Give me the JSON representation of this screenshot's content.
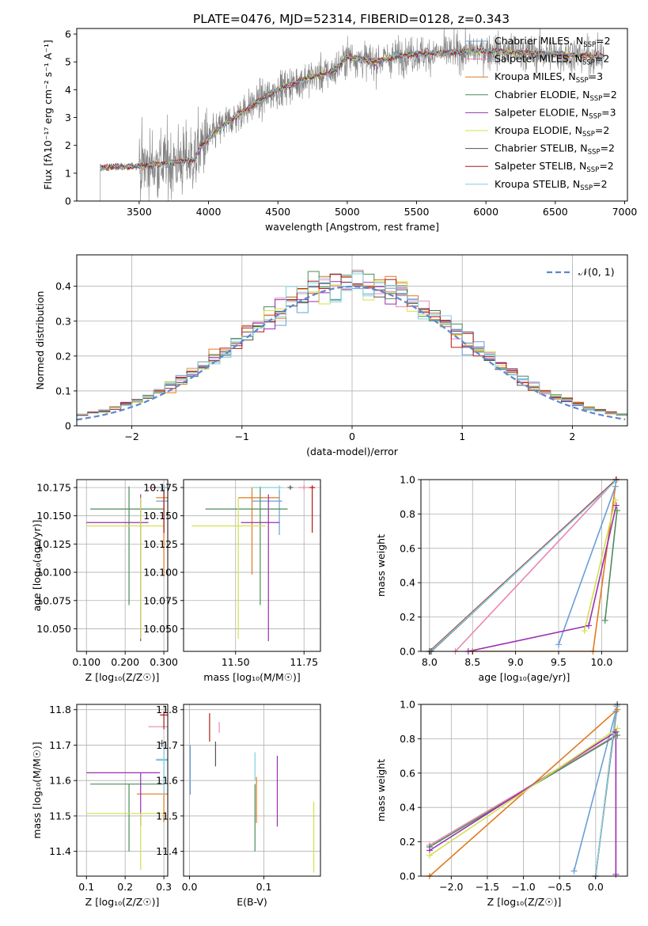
{
  "figure": {
    "title": "PLATE=0476, MJD=52314, FIBERID=0128, z=0.343"
  },
  "colors": {
    "series": [
      "#6a9fd6",
      "#e987b0",
      "#e07a20",
      "#4c8c5a",
      "#9a2eb0",
      "#d2e04c",
      "#555555",
      "#b01818",
      "#7fd0e0"
    ],
    "spectrum_data": "#808080",
    "normal": "#5b87d0",
    "grid": "#b0b0b0"
  },
  "chart_data": [
    {
      "id": "spectrum",
      "type": "line",
      "xlabel": "wavelength [Angstrom, rest frame]",
      "ylabel": "Flux [fλ10⁻¹⁷ erg cm⁻² s⁻¹ A⁻¹]",
      "xlim": [
        3050,
        7020
      ],
      "ylim": [
        0,
        6.2
      ],
      "xticks": [
        3500,
        4000,
        4500,
        5000,
        5500,
        6000,
        6500,
        7000
      ],
      "yticks": [
        0,
        1,
        2,
        3,
        4,
        5,
        6
      ],
      "grid": false,
      "legend_position": "upper-right",
      "x_range": [
        3220,
        6850
      ],
      "continuum": [
        [
          3220,
          1.2
        ],
        [
          3500,
          1.25
        ],
        [
          3700,
          1.35
        ],
        [
          3900,
          1.5
        ],
        [
          3950,
          2.0
        ],
        [
          4100,
          2.7
        ],
        [
          4300,
          3.4
        ],
        [
          4500,
          4.0
        ],
        [
          4700,
          4.4
        ],
        [
          4900,
          4.65
        ],
        [
          5000,
          5.2
        ],
        [
          5200,
          5.0
        ],
        [
          5400,
          5.25
        ],
        [
          5600,
          5.3
        ],
        [
          5800,
          5.35
        ],
        [
          6000,
          5.4
        ],
        [
          6200,
          5.35
        ],
        [
          6400,
          5.3
        ],
        [
          6600,
          5.25
        ],
        [
          6850,
          5.2
        ]
      ],
      "series": [
        {
          "name": "Chabrier MILES, N",
          "sub": "SSP",
          "suffix": "=2"
        },
        {
          "name": "Salpeter MILES, N",
          "sub": "SSP",
          "suffix": "=2"
        },
        {
          "name": "Kroupa MILES, N",
          "sub": "SSP",
          "suffix": "=3"
        },
        {
          "name": "Chabrier ELODIE, N",
          "sub": "SSP",
          "suffix": "=2"
        },
        {
          "name": "Salpeter ELODIE, N",
          "sub": "SSP",
          "suffix": "=3"
        },
        {
          "name": "Kroupa ELODIE, N",
          "sub": "SSP",
          "suffix": "=2"
        },
        {
          "name": "Chabrier STELIB, N",
          "sub": "SSP",
          "suffix": "=2"
        },
        {
          "name": "Salpeter STELIB, N",
          "sub": "SSP",
          "suffix": "=2"
        },
        {
          "name": "Kroupa STELIB, N",
          "sub": "SSP",
          "suffix": "=2"
        }
      ]
    },
    {
      "id": "residuals",
      "type": "histogram",
      "xlabel": "(data-model)/error",
      "ylabel": "Normed distribution",
      "xlim": [
        -2.5,
        2.5
      ],
      "ylim": [
        0,
        0.49
      ],
      "xticks": [
        -2,
        -1,
        0,
        1,
        2
      ],
      "yticks": [
        0.0,
        0.1,
        0.2,
        0.3,
        0.4
      ],
      "grid": true,
      "legend_position": "upper-right",
      "legend": "𝒩(0, 1)",
      "bin_width": 0.1,
      "series_count": 9
    },
    {
      "id": "age-vs-Z",
      "type": "errorbar",
      "xlabel": "Z [log₁₀(Z/Z☉)]",
      "ylabel": "age  [log₁₀(age/yr)]",
      "xlim": [
        0.075,
        0.31
      ],
      "ylim": [
        10.03,
        10.182
      ],
      "xticks": [
        0.1,
        0.2,
        0.3
      ],
      "yticks": [
        10.05,
        10.075,
        10.1,
        10.125,
        10.15,
        10.175
      ],
      "tick_decimals": 3,
      "grid": true,
      "points": [
        {
          "x": 0.3,
          "xerr": [
            0.02,
            0.01
          ],
          "y": 10.163,
          "yerr": [
            0.03,
            0.01
          ]
        },
        {
          "x": 0.3,
          "xerr": [
            0.04,
            0.01
          ],
          "y": 10.175,
          "yerr": [
            0.002,
            0.002
          ]
        },
        {
          "x": 0.3,
          "xerr": [
            0.02,
            0.01
          ],
          "y": 10.166,
          "yerr": [
            0.068,
            0.009
          ]
        },
        {
          "x": 0.21,
          "xerr": [
            0.1,
            0.09
          ],
          "y": 10.156,
          "yerr": [
            0.085,
            0.02
          ]
        },
        {
          "x": 0.24,
          "xerr": [
            0.14,
            0.02
          ],
          "y": 10.144,
          "yerr": [
            0.105,
            0.025
          ]
        },
        {
          "x": 0.24,
          "xerr": [
            0.14,
            0.06
          ],
          "y": 10.141,
          "yerr": [
            0.1,
            0.025
          ]
        },
        {
          "x": 0.295,
          "xerr": [
            0.005,
            0.005
          ],
          "y": 10.175,
          "yerr": [
            0.002,
            0.002
          ]
        },
        {
          "x": 0.3,
          "xerr": [
            0.03,
            0.01
          ],
          "y": 10.175,
          "yerr": [
            0.04,
            0.002
          ]
        },
        {
          "x": 0.3,
          "xerr": [
            0.02,
            0.01
          ],
          "y": 10.175,
          "yerr": [
            0.002,
            0.002
          ]
        }
      ]
    },
    {
      "id": "age-vs-mass",
      "type": "errorbar",
      "xlabel": "mass [log₁₀(M/M☉)]",
      "ylabel": "",
      "xlim": [
        11.31,
        11.81
      ],
      "ylim": [
        10.03,
        10.182
      ],
      "xticks": [
        11.5,
        11.75
      ],
      "xtick_labels": [
        "11.50",
        "11.75"
      ],
      "yticks": [
        10.05,
        10.075,
        10.1,
        10.125,
        10.15,
        10.175
      ],
      "tick_decimals": 3,
      "grid": true,
      "points": [
        {
          "x": 11.66,
          "xerr": [
            0.1,
            0.01
          ],
          "y": 10.163,
          "yerr": [
            0.03,
            0.01
          ]
        },
        {
          "x": 11.75,
          "xerr": [
            0.02,
            0.04
          ],
          "y": 10.175,
          "yerr": [
            0.002,
            0.002
          ]
        },
        {
          "x": 11.56,
          "xerr": [
            0.05,
            0.1
          ],
          "y": 10.166,
          "yerr": [
            0.068,
            0.009
          ]
        },
        {
          "x": 11.59,
          "xerr": [
            0.2,
            0.1
          ],
          "y": 10.156,
          "yerr": [
            0.085,
            0.02
          ]
        },
        {
          "x": 11.62,
          "xerr": [
            0.1,
            0.04
          ],
          "y": 10.144,
          "yerr": [
            0.105,
            0.025
          ]
        },
        {
          "x": 11.51,
          "xerr": [
            0.17,
            0.1
          ],
          "y": 10.141,
          "yerr": [
            0.1,
            0.025
          ]
        },
        {
          "x": 11.7,
          "xerr": [
            0.01,
            0.01
          ],
          "y": 10.175,
          "yerr": [
            0.002,
            0.002
          ]
        },
        {
          "x": 11.78,
          "xerr": [
            0.01,
            0.01
          ],
          "y": 10.175,
          "yerr": [
            0.04,
            0.002
          ]
        },
        {
          "x": 11.66,
          "xerr": [
            0.1,
            0.01
          ],
          "y": 10.175,
          "yerr": [
            0.002,
            0.002
          ]
        }
      ]
    },
    {
      "id": "weight-vs-age",
      "type": "line",
      "xlabel": "age  [log₁₀(age/yr)]",
      "ylabel": "mass weight",
      "xlim": [
        7.9,
        10.3
      ],
      "ylim": [
        0,
        1
      ],
      "xticks": [
        8.0,
        8.5,
        9.0,
        9.5,
        10.0
      ],
      "yticks": [
        0.0,
        0.2,
        0.4,
        0.6,
        0.8,
        1.0
      ],
      "tick_decimals": 1,
      "grid": true,
      "series": [
        {
          "points": [
            [
              9.5,
              0.04
            ],
            [
              10.16,
              0.96
            ]
          ]
        },
        {
          "points": [
            [
              8.3,
              0.0
            ],
            [
              10.17,
              1.0
            ]
          ]
        },
        {
          "points": [
            [
              8.5,
              0.0
            ],
            [
              9.9,
              0.0
            ],
            [
              10.17,
              1.0
            ]
          ]
        },
        {
          "points": [
            [
              10.04,
              0.18
            ],
            [
              10.18,
              0.82
            ]
          ]
        },
        {
          "points": [
            [
              8.45,
              0.0
            ],
            [
              9.85,
              0.15
            ],
            [
              10.17,
              0.85
            ]
          ]
        },
        {
          "points": [
            [
              9.8,
              0.12
            ],
            [
              10.16,
              0.88
            ]
          ]
        },
        {
          "points": [
            [
              8.02,
              0.0
            ],
            [
              10.17,
              1.0
            ]
          ]
        },
        {
          "points": [
            [
              8.0,
              0.0
            ],
            [
              10.17,
              1.0
            ]
          ]
        },
        {
          "points": [
            [
              8.01,
              0.0
            ],
            [
              10.16,
              0.99
            ]
          ]
        }
      ]
    },
    {
      "id": "mass-vs-Z",
      "type": "errorbar",
      "xlabel": "Z [log₁₀(Z/Z☉)]",
      "ylabel": "mass [log₁₀(M/M☉)]",
      "xlim": [
        0.075,
        0.31
      ],
      "ylim": [
        11.33,
        11.815
      ],
      "xticks": [
        0.1,
        0.2,
        0.3
      ],
      "yticks": [
        11.4,
        11.5,
        11.6,
        11.7,
        11.8
      ],
      "tick_decimals": 1,
      "grid": true,
      "points": [
        {
          "x": 0.3,
          "xerr": [
            0.02,
            0.01
          ],
          "y": 11.658,
          "yerr": [
            0.1,
            0.04
          ]
        },
        {
          "x": 0.3,
          "xerr": [
            0.04,
            0.01
          ],
          "y": 11.752,
          "yerr": [
            0.002,
            0.002
          ]
        },
        {
          "x": 0.3,
          "xerr": [
            0.07,
            0.01
          ],
          "y": 11.562,
          "yerr": [
            0.08,
            0.02
          ]
        },
        {
          "x": 0.21,
          "xerr": [
            0.1,
            0.09
          ],
          "y": 11.59,
          "yerr": [
            0.19,
            0.0
          ]
        },
        {
          "x": 0.24,
          "xerr": [
            0.14,
            0.05
          ],
          "y": 11.622,
          "yerr": [
            0.15,
            0.0
          ]
        },
        {
          "x": 0.24,
          "xerr": [
            0.14,
            0.06
          ],
          "y": 11.507,
          "yerr": [
            0.16,
            0.0
          ]
        },
        {
          "x": 0.295,
          "xerr": [
            0.005,
            0.005
          ],
          "y": 11.705,
          "yerr": [
            0.01,
            0.01
          ]
        },
        {
          "x": 0.3,
          "xerr": [
            0.01,
            0.01
          ],
          "y": 11.785,
          "yerr": [
            0.04,
            0.01
          ]
        },
        {
          "x": 0.3,
          "xerr": [
            0.02,
            0.01
          ],
          "y": 11.66,
          "yerr": [
            0.1,
            0.04
          ]
        }
      ]
    },
    {
      "id": "mass-vs-ebv",
      "type": "errorbar",
      "xlabel": "E(B-V)",
      "ylabel": "",
      "xlim": [
        -0.008,
        0.176
      ],
      "ylim": [
        11.33,
        11.815
      ],
      "xticks": [
        0.0,
        0.1
      ],
      "yticks": [
        11.4,
        11.5,
        11.6,
        11.7,
        11.8
      ],
      "tick_decimals": 1,
      "grid": true,
      "points": [
        {
          "x": 0.001,
          "xerr": [
            0.0,
            0.0
          ],
          "y": 11.64,
          "yerr": [
            0.08,
            0.06
          ]
        },
        {
          "x": 0.04,
          "xerr": [
            0.0,
            0.0
          ],
          "y": 11.75,
          "yerr": [
            0.015,
            0.015
          ]
        },
        {
          "x": 0.09,
          "xerr": [
            0.0,
            0.0
          ],
          "y": 11.56,
          "yerr": [
            0.08,
            0.05
          ]
        },
        {
          "x": 0.088,
          "xerr": [
            0.0,
            0.0
          ],
          "y": 11.59,
          "yerr": [
            0.19,
            0.0
          ]
        },
        {
          "x": 0.118,
          "xerr": [
            0.0,
            0.0
          ],
          "y": 11.57,
          "yerr": [
            0.1,
            0.1
          ]
        },
        {
          "x": 0.167,
          "xerr": [
            0.0,
            0.0
          ],
          "y": 11.44,
          "yerr": [
            0.1,
            0.1
          ]
        },
        {
          "x": 0.035,
          "xerr": [
            0.0,
            0.0
          ],
          "y": 11.68,
          "yerr": [
            0.04,
            0.03
          ]
        },
        {
          "x": 0.027,
          "xerr": [
            0.0,
            0.0
          ],
          "y": 11.75,
          "yerr": [
            0.04,
            0.04
          ]
        },
        {
          "x": 0.088,
          "xerr": [
            0.0,
            0.0
          ],
          "y": 11.64,
          "yerr": [
            0.04,
            0.04
          ]
        }
      ]
    },
    {
      "id": "weight-vs-Z",
      "type": "line",
      "xlabel": "Z [log₁₀(Z/Z☉)]",
      "ylabel": "mass weight",
      "xlim": [
        -2.42,
        0.44
      ],
      "ylim": [
        0,
        1
      ],
      "xticks": [
        -2.0,
        -1.5,
        -1.0,
        -0.5,
        0.0
      ],
      "yticks": [
        0.0,
        0.2,
        0.4,
        0.6,
        0.8,
        1.0
      ],
      "tick_decimals": 1,
      "grid": true,
      "series": [
        {
          "points": [
            [
              -0.3,
              0.03
            ],
            [
              0.28,
              0.96
            ]
          ]
        },
        {
          "points": [
            [
              -2.3,
              0.18
            ],
            [
              0.28,
              0.82
            ]
          ]
        },
        {
          "points": [
            [
              -2.3,
              0.0
            ],
            [
              0.3,
              0.97
            ]
          ]
        },
        {
          "points": [
            [
              -2.3,
              0.17
            ],
            [
              0.3,
              0.82
            ]
          ]
        },
        {
          "points": [
            [
              -2.3,
              0.15
            ],
            [
              0.28,
              0.84
            ],
            [
              0.28,
              0.01
            ]
          ]
        },
        {
          "points": [
            [
              -2.3,
              0.12
            ],
            [
              0.3,
              0.86
            ]
          ]
        },
        {
          "points": [
            [
              0.0,
              0.0
            ],
            [
              0.3,
              1.0
            ]
          ]
        },
        {
          "points": [
            [
              0.0,
              0.0
            ],
            [
              0.29,
              0.99
            ]
          ]
        },
        {
          "points": [
            [
              0.0,
              0.0
            ],
            [
              0.29,
              0.99
            ]
          ]
        }
      ]
    }
  ]
}
